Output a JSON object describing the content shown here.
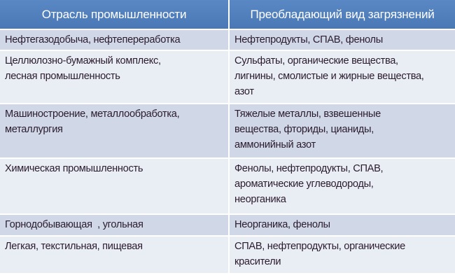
{
  "table": {
    "headers": [
      "Отрасль промышленности",
      "Преобладающий вид загрязнений"
    ],
    "rows": [
      {
        "industry": "Нефтегазодобыча,  нефтепереработка",
        "pollutants": "Нефтепродукты,  СПАВ, фенолы"
      },
      {
        "industry": "Целлюлозно-бумажный  комплекс, лесная  промышленность",
        "pollutants": "Сульфаты, органические  вещества, лигнины, смолистые  и жирные вещества, азот"
      },
      {
        "industry": "Машиностроение,  металлообработка, металлургия",
        "pollutants": "Тяжелые металлы, взвешенные вещества, фториды, цианиды, аммонийный азот"
      },
      {
        "industry": "Химическая  промышленность",
        "pollutants": "Фенолы, нефтепродукты,  СПАВ, ароматические  углеводороды, неорганика"
      },
      {
        "industry": "Горнодобывающая  , угольная",
        "pollutants": "Неорганика,  фенолы"
      },
      {
        "industry": "Легкая, текстильная,  пищевая",
        "pollutants": "СПАВ, нефтепродукты,  органические красители"
      }
    ]
  },
  "colors": {
    "header": "#4f81bd",
    "row_dark": "#d0d8e8",
    "row_light": "#e9edf4",
    "text": "#2b1b2e"
  }
}
